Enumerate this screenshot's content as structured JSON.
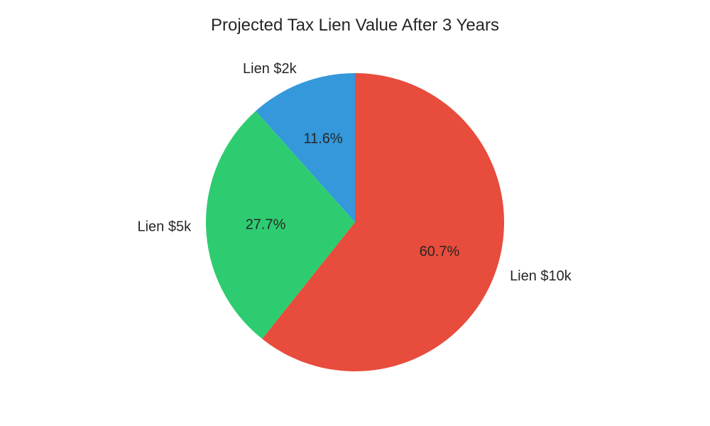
{
  "chart_data": {
    "type": "pie",
    "title": "Projected Tax Lien Value After 3 Years",
    "start_angle_deg": 90,
    "direction": "counterclockwise",
    "slices": [
      {
        "label": "Lien $2k",
        "value": 11.6,
        "pct_label": "11.6%",
        "color": "#3498db"
      },
      {
        "label": "Lien $5k",
        "value": 27.7,
        "pct_label": "27.7%",
        "color": "#2ecc71"
      },
      {
        "label": "Lien $10k",
        "value": 60.7,
        "pct_label": "60.7%",
        "color": "#e74c3c"
      }
    ]
  }
}
